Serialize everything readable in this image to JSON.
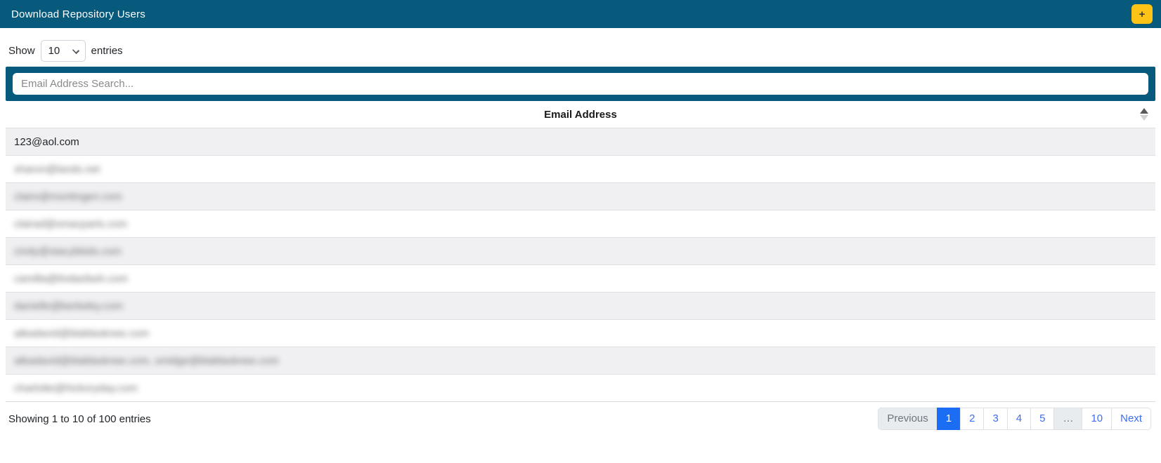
{
  "colors": {
    "header_bg": "#075a7c",
    "add_button_bg": "#fdc417",
    "active_page_bg": "#1b6ef3",
    "page_link_color": "#3d6ef0",
    "stripe_bg": "#f0f0f2"
  },
  "header": {
    "title": "Download Repository Users",
    "add_button_label": "+"
  },
  "controls": {
    "show_label": "Show",
    "show_value": "10",
    "entries_label": "entries"
  },
  "search": {
    "placeholder": "Email Address Search..."
  },
  "table": {
    "header": "Email Address",
    "sort_state": "ascending",
    "rows": [
      {
        "email": "123@aol.com",
        "blurred": false
      },
      {
        "email": "sharon@lands.net",
        "blurred": true
      },
      {
        "email": "claire@montingen.com",
        "blurred": true
      },
      {
        "email": "clairad@smacparts.com",
        "blurred": true
      },
      {
        "email": "cindy@stacybkids.com",
        "blurred": true
      },
      {
        "email": "camilla@lindasfash.com",
        "blurred": true
      },
      {
        "email": "danielle@berkeley.com",
        "blurred": true
      },
      {
        "email": "atkadavid@blablasknee.com",
        "blurred": true
      },
      {
        "email": "atkadavid@blablasknee.com, smidge@blablasknee.com",
        "blurred": true
      },
      {
        "email": "charlotte@hickoryday.com",
        "blurred": true
      }
    ]
  },
  "footer": {
    "info": "Showing 1 to 10 of 100 entries"
  },
  "pagination": {
    "items": [
      {
        "label": "Previous",
        "state": "disabled"
      },
      {
        "label": "1",
        "state": "active"
      },
      {
        "label": "2",
        "state": "link"
      },
      {
        "label": "3",
        "state": "link"
      },
      {
        "label": "4",
        "state": "link"
      },
      {
        "label": "5",
        "state": "link"
      },
      {
        "label": "…",
        "state": "disabled"
      },
      {
        "label": "10",
        "state": "link"
      },
      {
        "label": "Next",
        "state": "link"
      }
    ]
  }
}
